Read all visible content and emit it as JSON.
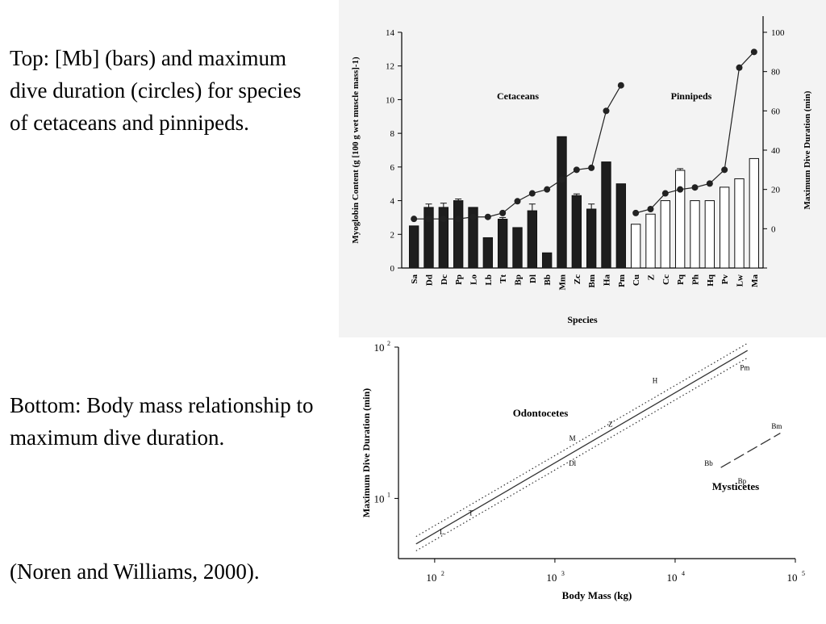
{
  "captions": {
    "top": "Top:  [Mb] (bars) and maximum dive duration (circles) for species of cetaceans and pinnipeds.",
    "bottom": "Bottom: Body mass relationship to maximum dive duration.",
    "reference": "(Noren and Williams, 2000)."
  },
  "chart_data": [
    {
      "type": "bar",
      "xlabel": "Species",
      "ylabel": "Myoglobin Content (g [100 g wet muscle mass]-1)",
      "y2label": "Maximum Dive Duration (min)",
      "ylim": [
        0,
        14
      ],
      "y2lim": [
        -20,
        100
      ],
      "yticks": [
        "0",
        "2",
        "4",
        "6",
        "8",
        "10",
        "12",
        "14"
      ],
      "y2ticks": [
        "0",
        "20",
        "40",
        "60",
        "80",
        "100"
      ],
      "group_labels": [
        "Cetaceans",
        "Pinnipeds"
      ],
      "categories": [
        "Sa",
        "Dd",
        "Dc",
        "Pp",
        "Lo",
        "Lb",
        "Tt",
        "Bp",
        "Dl",
        "Bb",
        "Mm",
        "Zc",
        "Bm",
        "Ha",
        "Pm",
        "Cu",
        "Z",
        "Cc",
        "Pq",
        "Ph",
        "Hq",
        "Pv",
        "Lw",
        "Ma"
      ],
      "groups": [
        "cetacean",
        "cetacean",
        "cetacean",
        "cetacean",
        "cetacean",
        "cetacean",
        "cetacean",
        "cetacean",
        "cetacean",
        "cetacean",
        "cetacean",
        "cetacean",
        "cetacean",
        "cetacean",
        "cetacean",
        "pinniped",
        "pinniped",
        "pinniped",
        "pinniped",
        "pinniped",
        "pinniped",
        "pinniped",
        "pinniped",
        "pinniped"
      ],
      "series": [
        {
          "kind": "bars",
          "values": [
            2.5,
            3.6,
            3.6,
            4.0,
            3.6,
            1.8,
            2.9,
            2.4,
            3.4,
            0.9,
            7.8,
            4.3,
            3.5,
            6.3,
            5.0,
            2.6,
            3.2,
            4.0,
            5.8,
            4.0,
            4.0,
            4.8,
            5.3,
            6.5
          ],
          "errors": [
            0,
            0.2,
            0.25,
            0.1,
            0,
            0,
            0.1,
            0,
            0.4,
            0,
            0,
            0.1,
            0.3,
            0,
            0,
            0,
            0,
            0,
            0.1,
            0,
            0,
            0,
            0,
            0
          ]
        },
        {
          "kind": "line-circles",
          "values": [
            5,
            5,
            5,
            5,
            6,
            6,
            8,
            14,
            18,
            20,
            25,
            30,
            31,
            60,
            73,
            8,
            10,
            18,
            20,
            21,
            23,
            30,
            82,
            90
          ]
        }
      ],
      "bar_colors": {
        "cetacean": "#1e1e1e",
        "pinniped": "#ffffff"
      }
    },
    {
      "type": "scatter",
      "xlabel": "Body Mass (kg)",
      "ylabel": "Maximum Dive Duration (min)",
      "xscale": "log",
      "yscale": "log",
      "xlim": [
        50,
        100000
      ],
      "ylim": [
        4,
        100
      ],
      "xticks": [
        {
          "base": "10",
          "exp": "2"
        },
        {
          "base": "10",
          "exp": "3"
        },
        {
          "base": "10",
          "exp": "4"
        },
        {
          "base": "10",
          "exp": "5"
        }
      ],
      "yticks": [
        {
          "base": "10",
          "exp": "1"
        },
        {
          "base": "10",
          "exp": "2"
        }
      ],
      "group_labels": [
        "Odontocetes",
        "Mysticetes"
      ],
      "points": [
        {
          "label": "H",
          "x": 6800,
          "y": 60
        },
        {
          "label": "Pm",
          "x": 38000,
          "y": 73
        },
        {
          "label": "Z",
          "x": 2900,
          "y": 31
        },
        {
          "label": "M",
          "x": 1400,
          "y": 25
        },
        {
          "label": "Dl",
          "x": 1400,
          "y": 17
        },
        {
          "label": "T",
          "x": 200,
          "y": 8
        },
        {
          "label": "L",
          "x": 115,
          "y": 6
        },
        {
          "label": "Bb",
          "x": 19000,
          "y": 17
        },
        {
          "label": "Bp",
          "x": 36000,
          "y": 13
        },
        {
          "label": "Bm",
          "x": 70000,
          "y": 30
        }
      ],
      "fit_line": {
        "x": [
          70,
          40000
        ],
        "y": [
          5,
          95
        ]
      },
      "confidence_band": {
        "x": [
          70,
          40000
        ],
        "upper": [
          5.6,
          106
        ],
        "lower": [
          4.5,
          85
        ]
      },
      "mysticete_line": {
        "x": [
          24000,
          75000
        ],
        "y": [
          16,
          27
        ]
      }
    }
  ]
}
